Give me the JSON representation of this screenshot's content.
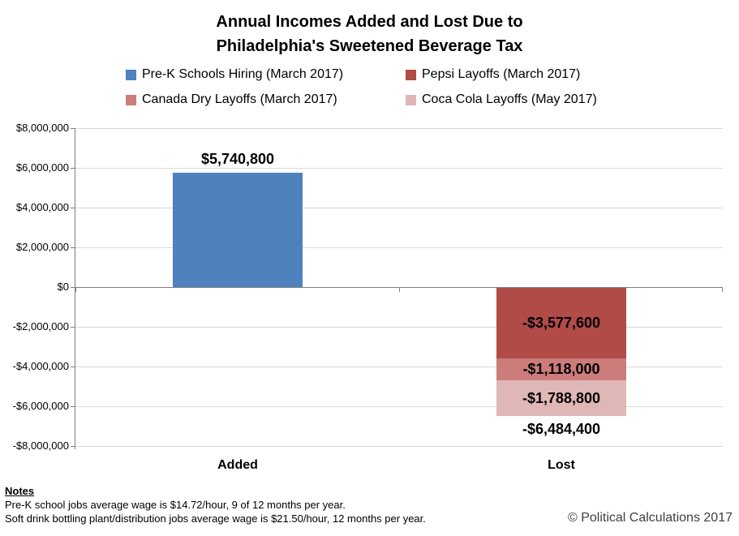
{
  "title": {
    "line1": "Annual Incomes Added and Lost Due to",
    "line2": "Philadelphia's Sweetened Beverage Tax"
  },
  "legend": {
    "items": [
      {
        "label": "Pre-K Schools Hiring (March 2017)",
        "color": "#4e81bd"
      },
      {
        "label": "Pepsi Layoffs (March 2017)",
        "color": "#b04b48"
      },
      {
        "label": "Canada Dry Layoffs (March 2017)",
        "color": "#cc7c7a"
      },
      {
        "label": "Coca Cola Layoffs (May 2017)",
        "color": "#dfb7b6"
      }
    ]
  },
  "chart_data": {
    "type": "bar",
    "stacked": true,
    "title": "Annual Incomes Added and Lost Due to Philadelphia's Sweetened Beverage Tax",
    "categories": [
      "Added",
      "Lost"
    ],
    "series": [
      {
        "name": "Pre-K Schools Hiring (March 2017)",
        "color": "#4e81bd",
        "values": [
          5740800,
          0
        ],
        "value_labels": [
          "$5,740,800",
          ""
        ]
      },
      {
        "name": "Pepsi Layoffs (March 2017)",
        "color": "#b04b48",
        "values": [
          0,
          -3577600
        ],
        "value_labels": [
          "",
          "-$3,577,600"
        ]
      },
      {
        "name": "Canada Dry Layoffs (March 2017)",
        "color": "#cc7c7a",
        "values": [
          0,
          -1118000
        ],
        "value_labels": [
          "",
          "-$1,118,000"
        ]
      },
      {
        "name": "Coca Cola Layoffs (May 2017)",
        "color": "#dfb7b6",
        "values": [
          0,
          -1788800
        ],
        "value_labels": [
          "",
          "-$1,788,800"
        ]
      }
    ],
    "total_labels": [
      "",
      "-$6,484,400"
    ],
    "ylim": [
      -8000000,
      8000000
    ],
    "ytick_step": 2000000,
    "ytick_labels": [
      "$8,000,000",
      "$6,000,000",
      "$4,000,000",
      "$2,000,000",
      "$0",
      "-$2,000,000",
      "-$4,000,000",
      "-$6,000,000",
      "-$8,000,000"
    ],
    "grid": true,
    "legend_position": "top",
    "gridline_color": "#d9d9d9",
    "axis_color": "#7f7f7f"
  },
  "notes": {
    "heading": "Notes",
    "lines": [
      "Pre-K school jobs average wage is $14.72/hour, 9 of 12 months per year.",
      "Soft drink bottling plant/distribution jobs average wage is $21.50/hour, 12 months per year."
    ]
  },
  "footer": {
    "copyright": "© Political Calculations 2017"
  }
}
